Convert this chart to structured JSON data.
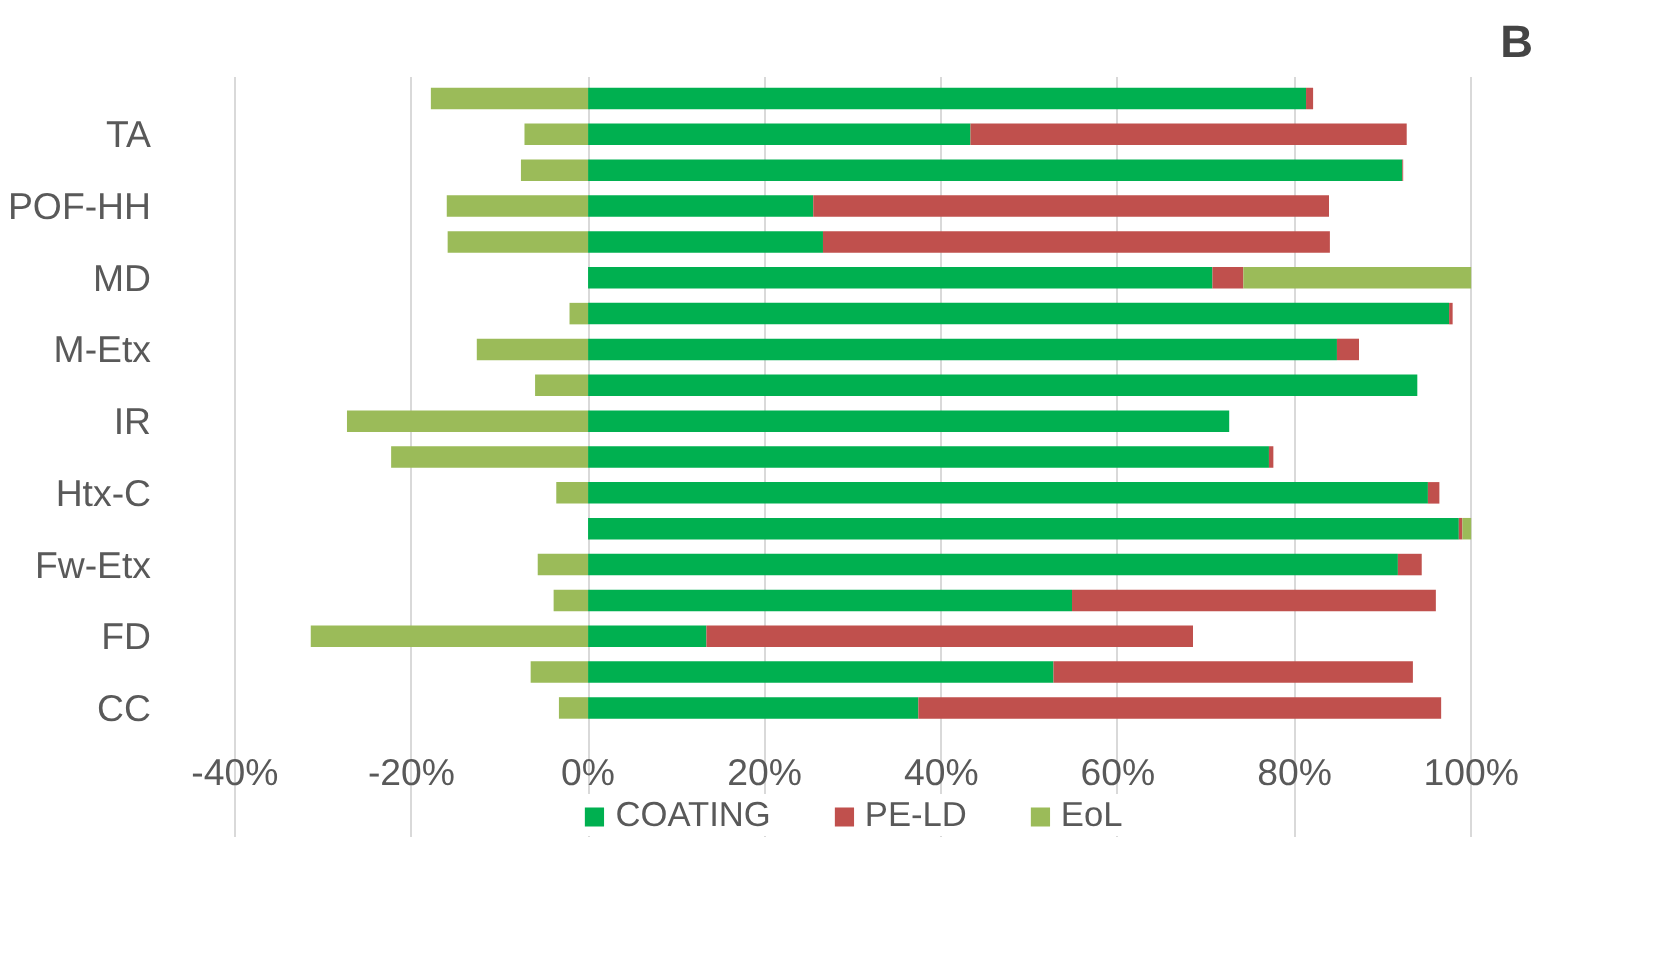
{
  "chart_data": {
    "type": "bar",
    "orientation": "horizontal",
    "stacked": true,
    "categories": [
      null,
      "TA",
      null,
      "POF-HH",
      null,
      "MD",
      null,
      "M-Etx",
      null,
      "IR",
      null,
      "Htx-C",
      null,
      "Fw-Etx",
      null,
      "FD",
      null,
      "CC"
    ],
    "series": [
      {
        "name": "COATING",
        "color": "#00b050",
        "values": [
          81.3,
          43.3,
          92.2,
          25.5,
          26.6,
          70.7,
          97.5,
          84.8,
          93.9,
          72.6,
          77.1,
          95.1,
          98.6,
          91.7,
          54.8,
          13.4,
          52.7,
          37.4
        ]
      },
      {
        "name": "PE-LD",
        "color": "#c0504d",
        "values": [
          0.8,
          49.4,
          0.1,
          58.4,
          57.4,
          3.5,
          0.4,
          2.5,
          0,
          0,
          0.5,
          1.3,
          0.4,
          2.7,
          41.2,
          55.1,
          40.7,
          59.2
        ]
      },
      {
        "name": "EoL",
        "color": "#9bbb59",
        "values": [
          -17.8,
          -7.2,
          -7.6,
          -16.0,
          -15.9,
          25.8,
          -2.1,
          -12.6,
          -6.0,
          -27.3,
          -22.3,
          -3.6,
          1.0,
          -5.7,
          -3.9,
          -31.4,
          -6.5,
          -3.3
        ]
      }
    ],
    "xlim": [
      -40,
      100
    ],
    "xticks": [
      {
        "value": -40,
        "label": "-40%"
      },
      {
        "value": -20,
        "label": "-20%"
      },
      {
        "value": 0,
        "label": "0%"
      },
      {
        "value": 20,
        "label": "20%"
      },
      {
        "value": 40,
        "label": "40%"
      },
      {
        "value": 60,
        "label": "60%"
      },
      {
        "value": 80,
        "label": "80%"
      },
      {
        "value": 100,
        "label": "100%"
      }
    ],
    "grid": "x",
    "legend": "bottom",
    "annotations": [
      "B"
    ]
  }
}
